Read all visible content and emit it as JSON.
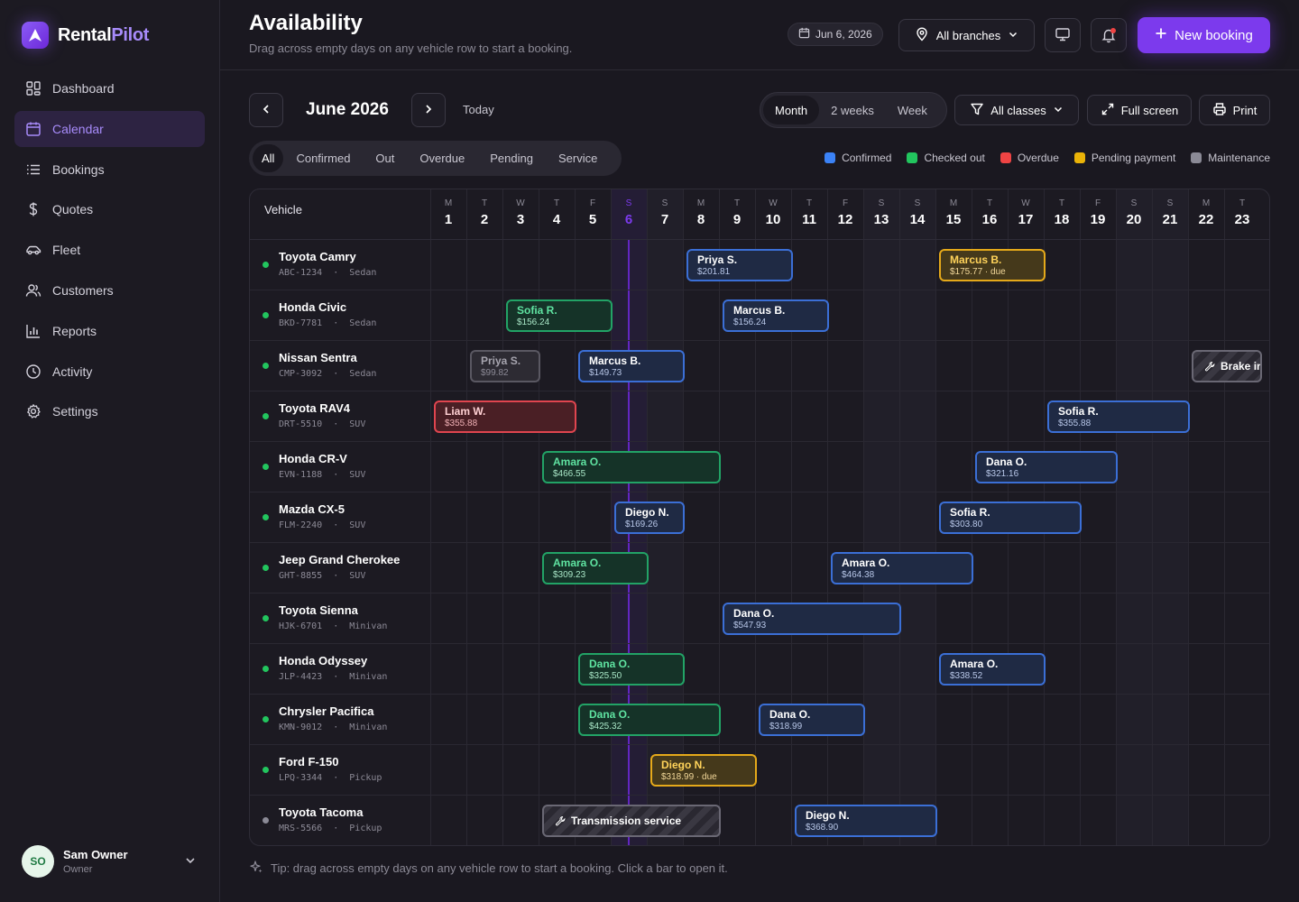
{
  "brand": {
    "name_main": "Rental",
    "name_accent": "Pilot"
  },
  "nav": [
    {
      "label": "Dashboard",
      "icon": "grid-icon",
      "active": false
    },
    {
      "label": "Calendar",
      "icon": "calendar-icon",
      "active": true
    },
    {
      "label": "Bookings",
      "icon": "list-icon",
      "active": false
    },
    {
      "label": "Quotes",
      "icon": "dollar-icon",
      "active": false
    },
    {
      "label": "Fleet",
      "icon": "car-icon",
      "active": false
    },
    {
      "label": "Customers",
      "icon": "users-icon",
      "active": false
    },
    {
      "label": "Reports",
      "icon": "bar-chart-icon",
      "active": false
    },
    {
      "label": "Activity",
      "icon": "clock-icon",
      "active": false
    },
    {
      "label": "Settings",
      "icon": "gear-icon",
      "active": false
    }
  ],
  "user": {
    "initials": "SO",
    "name": "Sam Owner",
    "role": "Owner"
  },
  "header": {
    "title": "Availability",
    "subtitle": "Drag across empty days on any vehicle row to start a booking.",
    "date": "Jun 6, 2026",
    "branch": "All branches",
    "new_booking": "New booking"
  },
  "toolbar": {
    "month": "June 2026",
    "today": "Today",
    "views": [
      "Month",
      "2 weeks",
      "Week"
    ],
    "active_view": "Month",
    "classes": "All classes",
    "fullscreen": "Full screen",
    "print": "Print"
  },
  "filters": [
    "All",
    "Confirmed",
    "Out",
    "Overdue",
    "Pending",
    "Service"
  ],
  "active_filter": "All",
  "legend": [
    {
      "label": "Confirmed",
      "color": "#3b82f6"
    },
    {
      "label": "Checked out",
      "color": "#22c55e"
    },
    {
      "label": "Overdue",
      "color": "#ef4444"
    },
    {
      "label": "Pending payment",
      "color": "#eab308"
    },
    {
      "label": "Maintenance",
      "color": "#8b8a96"
    }
  ],
  "grid": {
    "vehicle_header": "Vehicle",
    "today_day": 6,
    "days": [
      {
        "d": "M",
        "n": "1"
      },
      {
        "d": "T",
        "n": "2"
      },
      {
        "d": "W",
        "n": "3"
      },
      {
        "d": "T",
        "n": "4"
      },
      {
        "d": "F",
        "n": "5"
      },
      {
        "d": "S",
        "n": "6"
      },
      {
        "d": "S",
        "n": "7"
      },
      {
        "d": "M",
        "n": "8"
      },
      {
        "d": "T",
        "n": "9"
      },
      {
        "d": "W",
        "n": "10"
      },
      {
        "d": "T",
        "n": "11"
      },
      {
        "d": "F",
        "n": "12"
      },
      {
        "d": "S",
        "n": "13"
      },
      {
        "d": "S",
        "n": "14"
      },
      {
        "d": "M",
        "n": "15"
      },
      {
        "d": "T",
        "n": "16"
      },
      {
        "d": "W",
        "n": "17"
      },
      {
        "d": "T",
        "n": "18"
      },
      {
        "d": "F",
        "n": "19"
      },
      {
        "d": "S",
        "n": "20"
      },
      {
        "d": "S",
        "n": "21"
      },
      {
        "d": "M",
        "n": "22"
      },
      {
        "d": "T",
        "n": "23"
      }
    ]
  },
  "vehicles": [
    {
      "name": "Toyota Camry",
      "plate": "ABC-1234",
      "class": "Sedan",
      "status": "available",
      "bookings": [
        {
          "start": 8,
          "end": 11,
          "name": "Priya S.",
          "amount": "$201.81",
          "type": "confirmed"
        },
        {
          "start": 15,
          "end": 18,
          "name": "Marcus B.",
          "amount": "$175.77 · due",
          "type": "pending"
        }
      ]
    },
    {
      "name": "Honda Civic",
      "plate": "BKD-7781",
      "class": "Sedan",
      "status": "available",
      "bookings": [
        {
          "start": 3,
          "end": 6,
          "name": "Sofia R.",
          "amount": "$156.24",
          "type": "out"
        },
        {
          "start": 9,
          "end": 12,
          "name": "Marcus B.",
          "amount": "$156.24",
          "type": "confirmed"
        }
      ]
    },
    {
      "name": "Nissan Sentra",
      "plate": "CMP-3092",
      "class": "Sedan",
      "status": "available",
      "bookings": [
        {
          "start": 2,
          "end": 4,
          "name": "Priya S.",
          "amount": "$99.82",
          "type": "cancelled"
        },
        {
          "start": 5,
          "end": 8,
          "name": "Marcus B.",
          "amount": "$149.73",
          "type": "confirmed"
        },
        {
          "start": 22,
          "end": 24,
          "name": "Brake inspection",
          "type": "service"
        }
      ]
    },
    {
      "name": "Toyota RAV4",
      "plate": "DRT-5510",
      "class": "SUV",
      "status": "available",
      "bookings": [
        {
          "start": 1,
          "end": 5,
          "name": "Liam W.",
          "amount": "$355.88",
          "type": "overdue"
        },
        {
          "start": 18,
          "end": 22,
          "name": "Sofia R.",
          "amount": "$355.88",
          "type": "confirmed"
        }
      ]
    },
    {
      "name": "Honda CR-V",
      "plate": "EVN-1188",
      "class": "SUV",
      "status": "available",
      "bookings": [
        {
          "start": 4,
          "end": 9,
          "name": "Amara O.",
          "amount": "$466.55",
          "type": "out"
        },
        {
          "start": 16,
          "end": 20,
          "name": "Dana O.",
          "amount": "$321.16",
          "type": "confirmed"
        }
      ]
    },
    {
      "name": "Mazda CX-5",
      "plate": "FLM-2240",
      "class": "SUV",
      "status": "available",
      "bookings": [
        {
          "start": 6,
          "end": 8,
          "name": "Diego N.",
          "amount": "$169.26",
          "type": "confirmed"
        },
        {
          "start": 15,
          "end": 19,
          "name": "Sofia R.",
          "amount": "$303.80",
          "type": "confirmed"
        }
      ]
    },
    {
      "name": "Jeep Grand Cherokee",
      "plate": "GHT-8855",
      "class": "SUV",
      "status": "available",
      "bookings": [
        {
          "start": 4,
          "end": 7,
          "name": "Amara O.",
          "amount": "$309.23",
          "type": "out"
        },
        {
          "start": 12,
          "end": 16,
          "name": "Amara O.",
          "amount": "$464.38",
          "type": "confirmed"
        }
      ]
    },
    {
      "name": "Toyota Sienna",
      "plate": "HJK-6701",
      "class": "Minivan",
      "status": "available",
      "bookings": [
        {
          "start": 9,
          "end": 14,
          "name": "Dana O.",
          "amount": "$547.93",
          "type": "confirmed"
        }
      ]
    },
    {
      "name": "Honda Odyssey",
      "plate": "JLP-4423",
      "class": "Minivan",
      "status": "available",
      "bookings": [
        {
          "start": 5,
          "end": 8,
          "name": "Dana O.",
          "amount": "$325.50",
          "type": "out"
        },
        {
          "start": 15,
          "end": 18,
          "name": "Amara O.",
          "amount": "$338.52",
          "type": "confirmed"
        }
      ]
    },
    {
      "name": "Chrysler Pacifica",
      "plate": "KMN-9012",
      "class": "Minivan",
      "status": "available",
      "bookings": [
        {
          "start": 5,
          "end": 9,
          "name": "Dana O.",
          "amount": "$425.32",
          "type": "out"
        },
        {
          "start": 10,
          "end": 13,
          "name": "Dana O.",
          "amount": "$318.99",
          "type": "confirmed"
        }
      ]
    },
    {
      "name": "Ford F-150",
      "plate": "LPQ-3344",
      "class": "Pickup",
      "status": "available",
      "bookings": [
        {
          "start": 7,
          "end": 10,
          "name": "Diego N.",
          "amount": "$318.99 · due",
          "type": "pending"
        }
      ]
    },
    {
      "name": "Toyota Tacoma",
      "plate": "MRS-5566",
      "class": "Pickup",
      "status": "maintenance",
      "bookings": [
        {
          "start": 4,
          "end": 9,
          "name": "Transmission service",
          "type": "service"
        },
        {
          "start": 11,
          "end": 15,
          "name": "Diego N.",
          "amount": "$368.90",
          "type": "confirmed"
        }
      ]
    }
  ],
  "tip": "Tip: drag across empty days on any vehicle row to start a booking. Click a bar to open it."
}
